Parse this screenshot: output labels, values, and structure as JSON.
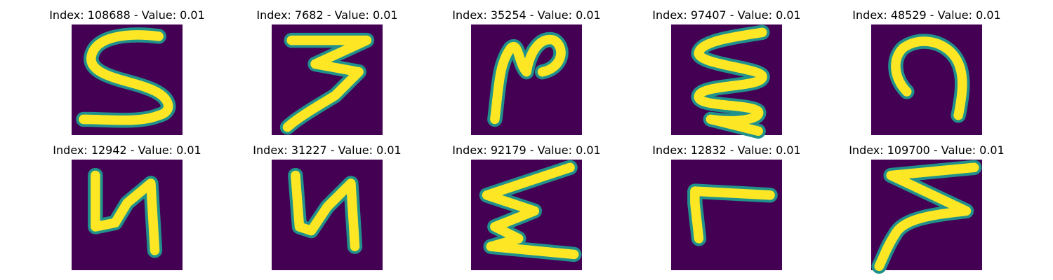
{
  "figure": {
    "colormap": "viridis",
    "background_color": "#440154",
    "stroke_color_outer": "#21918c",
    "stroke_color_inner": "#fde725",
    "tiles": [
      {
        "title": "Index: 108688 - Value: 0.01",
        "index": 108688,
        "value": 0.01
      },
      {
        "title": "Index: 7682 - Value: 0.01",
        "index": 7682,
        "value": 0.01
      },
      {
        "title": "Index: 35254 - Value: 0.01",
        "index": 35254,
        "value": 0.01
      },
      {
        "title": "Index: 97407 - Value: 0.01",
        "index": 97407,
        "value": 0.01
      },
      {
        "title": "Index: 48529 - Value: 0.01",
        "index": 48529,
        "value": 0.01
      },
      {
        "title": "Index: 12942 - Value: 0.01",
        "index": 12942,
        "value": 0.01
      },
      {
        "title": "Index: 31227 - Value: 0.01",
        "index": 31227,
        "value": 0.01
      },
      {
        "title": "Index: 92179 - Value: 0.01",
        "index": 92179,
        "value": 0.01
      },
      {
        "title": "Index: 12832 - Value: 0.01",
        "index": 12832,
        "value": 0.01
      },
      {
        "title": "Index: 109700 - Value: 0.01",
        "index": 109700,
        "value": 0.01
      }
    ]
  }
}
